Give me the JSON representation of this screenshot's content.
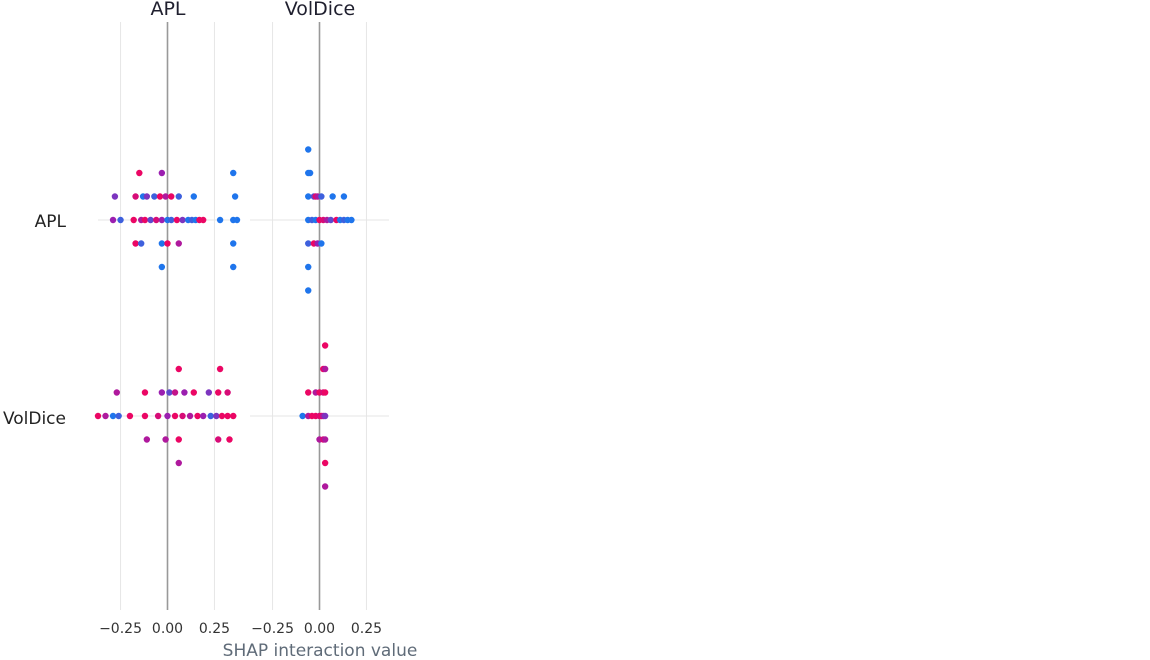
{
  "chart_data": {
    "type": "scatter",
    "subtype": "shap-interaction-summary",
    "xlabel": "SHAP interaction value",
    "features": [
      "APL",
      "VolDice"
    ],
    "xlim": [
      -0.37,
      0.37
    ],
    "xticks": [
      "−0.25",
      "0.00",
      "0.25"
    ],
    "xtick_values": [
      -0.25,
      0.0,
      0.25
    ],
    "colors": {
      "low": "#008bfb",
      "mid": "#9b1fb0",
      "high": "#ff0051",
      "zero_line": "#999999",
      "grid": "#e6e6e6"
    },
    "panels": [
      {
        "row": "APL",
        "col": "APL",
        "points": [
          {
            "x": -0.15,
            "lane": -2,
            "c": 0.9
          },
          {
            "x": -0.03,
            "lane": -2,
            "c": 0.5
          },
          {
            "x": 0.35,
            "lane": -2,
            "c": 0.1
          },
          {
            "x": -0.28,
            "lane": -1,
            "c": 0.4
          },
          {
            "x": -0.17,
            "lane": -1,
            "c": 0.8
          },
          {
            "x": -0.13,
            "lane": -1,
            "c": 0.1
          },
          {
            "x": -0.11,
            "lane": -1,
            "c": 0.4
          },
          {
            "x": -0.07,
            "lane": -1,
            "c": 0.2
          },
          {
            "x": -0.04,
            "lane": -1,
            "c": 0.9
          },
          {
            "x": -0.01,
            "lane": -1,
            "c": 0.6
          },
          {
            "x": 0.02,
            "lane": -1,
            "c": 0.9
          },
          {
            "x": 0.06,
            "lane": -1,
            "c": 0.2
          },
          {
            "x": 0.14,
            "lane": -1,
            "c": 0.1
          },
          {
            "x": 0.36,
            "lane": -1,
            "c": 0.1
          },
          {
            "x": -0.29,
            "lane": 0,
            "c": 0.5
          },
          {
            "x": -0.25,
            "lane": 0,
            "c": 0.2
          },
          {
            "x": -0.18,
            "lane": 0,
            "c": 0.9
          },
          {
            "x": -0.14,
            "lane": 0,
            "c": 0.6
          },
          {
            "x": -0.12,
            "lane": 0,
            "c": 0.9
          },
          {
            "x": -0.09,
            "lane": 0,
            "c": 0.3
          },
          {
            "x": -0.06,
            "lane": 0,
            "c": 0.8
          },
          {
            "x": -0.03,
            "lane": 0,
            "c": 0.5
          },
          {
            "x": 0.0,
            "lane": 0,
            "c": 0.1
          },
          {
            "x": 0.02,
            "lane": 0,
            "c": 0.2
          },
          {
            "x": 0.05,
            "lane": 0,
            "c": 0.9
          },
          {
            "x": 0.08,
            "lane": 0,
            "c": 0.4
          },
          {
            "x": 0.11,
            "lane": 0,
            "c": 0.1
          },
          {
            "x": 0.13,
            "lane": 0,
            "c": 0.2
          },
          {
            "x": 0.15,
            "lane": 0,
            "c": 0.1
          },
          {
            "x": 0.17,
            "lane": 0,
            "c": 0.9
          },
          {
            "x": 0.19,
            "lane": 0,
            "c": 0.9
          },
          {
            "x": 0.28,
            "lane": 0,
            "c": 0.1
          },
          {
            "x": 0.35,
            "lane": 0,
            "c": 0.1
          },
          {
            "x": 0.37,
            "lane": 0,
            "c": 0.1
          },
          {
            "x": -0.17,
            "lane": 1,
            "c": 0.9
          },
          {
            "x": -0.14,
            "lane": 1,
            "c": 0.2
          },
          {
            "x": -0.03,
            "lane": 1,
            "c": 0.1
          },
          {
            "x": 0.0,
            "lane": 1,
            "c": 0.9
          },
          {
            "x": 0.06,
            "lane": 1,
            "c": 0.6
          },
          {
            "x": 0.35,
            "lane": 1,
            "c": 0.1
          },
          {
            "x": -0.03,
            "lane": 2,
            "c": 0.1
          },
          {
            "x": 0.35,
            "lane": 2,
            "c": 0.1
          }
        ]
      },
      {
        "row": "APL",
        "col": "VolDice",
        "points": [
          {
            "x": -0.06,
            "lane": -3,
            "c": 0.1
          },
          {
            "x": -0.06,
            "lane": -2,
            "c": 0.1
          },
          {
            "x": -0.05,
            "lane": -2,
            "c": 0.1
          },
          {
            "x": -0.06,
            "lane": -1,
            "c": 0.1
          },
          {
            "x": -0.03,
            "lane": -1,
            "c": 0.3
          },
          {
            "x": -0.02,
            "lane": -1,
            "c": 0.9
          },
          {
            "x": -0.01,
            "lane": -1,
            "c": 0.6
          },
          {
            "x": 0.01,
            "lane": -1,
            "c": 0.2
          },
          {
            "x": 0.07,
            "lane": -1,
            "c": 0.1
          },
          {
            "x": 0.13,
            "lane": -1,
            "c": 0.1
          },
          {
            "x": -0.06,
            "lane": 0,
            "c": 0.1
          },
          {
            "x": -0.04,
            "lane": 0,
            "c": 0.2
          },
          {
            "x": -0.02,
            "lane": 0,
            "c": 0.1
          },
          {
            "x": 0.0,
            "lane": 0,
            "c": 0.9
          },
          {
            "x": 0.02,
            "lane": 0,
            "c": 0.8
          },
          {
            "x": 0.04,
            "lane": 0,
            "c": 0.6
          },
          {
            "x": 0.06,
            "lane": 0,
            "c": 0.3
          },
          {
            "x": 0.09,
            "lane": 0,
            "c": 0.9
          },
          {
            "x": 0.11,
            "lane": 0,
            "c": 0.1
          },
          {
            "x": 0.13,
            "lane": 0,
            "c": 0.2
          },
          {
            "x": 0.15,
            "lane": 0,
            "c": 0.1
          },
          {
            "x": 0.17,
            "lane": 0,
            "c": 0.1
          },
          {
            "x": -0.06,
            "lane": 1,
            "c": 0.2
          },
          {
            "x": -0.03,
            "lane": 1,
            "c": 0.9
          },
          {
            "x": -0.01,
            "lane": 1,
            "c": 0.5
          },
          {
            "x": 0.01,
            "lane": 1,
            "c": 0.1
          },
          {
            "x": -0.06,
            "lane": 2,
            "c": 0.1
          },
          {
            "x": -0.06,
            "lane": 3,
            "c": 0.1
          }
        ]
      },
      {
        "row": "VolDice",
        "col": "APL",
        "points": [
          {
            "x": 0.06,
            "lane": -2,
            "c": 0.9
          },
          {
            "x": 0.28,
            "lane": -2,
            "c": 0.9
          },
          {
            "x": -0.27,
            "lane": -1,
            "c": 0.6
          },
          {
            "x": -0.12,
            "lane": -1,
            "c": 0.9
          },
          {
            "x": -0.03,
            "lane": -1,
            "c": 0.5
          },
          {
            "x": 0.01,
            "lane": -1,
            "c": 0.3
          },
          {
            "x": 0.04,
            "lane": -1,
            "c": 0.7
          },
          {
            "x": 0.09,
            "lane": -1,
            "c": 0.5
          },
          {
            "x": 0.14,
            "lane": -1,
            "c": 0.9
          },
          {
            "x": 0.22,
            "lane": -1,
            "c": 0.4
          },
          {
            "x": 0.27,
            "lane": -1,
            "c": 0.9
          },
          {
            "x": 0.32,
            "lane": -1,
            "c": 0.8
          },
          {
            "x": -0.37,
            "lane": 0,
            "c": 0.9
          },
          {
            "x": -0.33,
            "lane": 0,
            "c": 0.6
          },
          {
            "x": -0.29,
            "lane": 0,
            "c": 0.1
          },
          {
            "x": -0.26,
            "lane": 0,
            "c": 0.2
          },
          {
            "x": -0.2,
            "lane": 0,
            "c": 0.9
          },
          {
            "x": -0.12,
            "lane": 0,
            "c": 0.9
          },
          {
            "x": -0.05,
            "lane": 0,
            "c": 0.8
          },
          {
            "x": 0.0,
            "lane": 0,
            "c": 0.5
          },
          {
            "x": 0.04,
            "lane": 0,
            "c": 0.9
          },
          {
            "x": 0.08,
            "lane": 0,
            "c": 0.8
          },
          {
            "x": 0.12,
            "lane": 0,
            "c": 0.6
          },
          {
            "x": 0.16,
            "lane": 0,
            "c": 0.9
          },
          {
            "x": 0.19,
            "lane": 0,
            "c": 0.5
          },
          {
            "x": 0.23,
            "lane": 0,
            "c": 0.2
          },
          {
            "x": 0.26,
            "lane": 0,
            "c": 0.4
          },
          {
            "x": 0.29,
            "lane": 0,
            "c": 0.9
          },
          {
            "x": 0.32,
            "lane": 0,
            "c": 0.9
          },
          {
            "x": 0.35,
            "lane": 0,
            "c": 0.9
          },
          {
            "x": -0.11,
            "lane": 1,
            "c": 0.6
          },
          {
            "x": -0.01,
            "lane": 1,
            "c": 0.6
          },
          {
            "x": 0.06,
            "lane": 1,
            "c": 0.9
          },
          {
            "x": 0.27,
            "lane": 1,
            "c": 0.8
          },
          {
            "x": 0.33,
            "lane": 1,
            "c": 0.9
          },
          {
            "x": 0.06,
            "lane": 2,
            "c": 0.6
          }
        ]
      },
      {
        "row": "VolDice",
        "col": "VolDice",
        "points": [
          {
            "x": 0.03,
            "lane": -3,
            "c": 0.9
          },
          {
            "x": 0.02,
            "lane": -2,
            "c": 0.9
          },
          {
            "x": 0.03,
            "lane": -2,
            "c": 0.6
          },
          {
            "x": -0.06,
            "lane": -1,
            "c": 0.9
          },
          {
            "x": -0.02,
            "lane": -1,
            "c": 0.6
          },
          {
            "x": 0.0,
            "lane": -1,
            "c": 0.9
          },
          {
            "x": 0.02,
            "lane": -1,
            "c": 0.8
          },
          {
            "x": 0.03,
            "lane": -1,
            "c": 0.9
          },
          {
            "x": -0.09,
            "lane": 0,
            "c": 0.1
          },
          {
            "x": -0.06,
            "lane": 0,
            "c": 0.6
          },
          {
            "x": -0.04,
            "lane": 0,
            "c": 0.9
          },
          {
            "x": -0.02,
            "lane": 0,
            "c": 0.9
          },
          {
            "x": 0.0,
            "lane": 0,
            "c": 0.8
          },
          {
            "x": 0.01,
            "lane": 0,
            "c": 0.9
          },
          {
            "x": 0.02,
            "lane": 0,
            "c": 0.6
          },
          {
            "x": 0.03,
            "lane": 0,
            "c": 0.4
          },
          {
            "x": 0.0,
            "lane": 1,
            "c": 0.6
          },
          {
            "x": 0.02,
            "lane": 1,
            "c": 0.8
          },
          {
            "x": 0.03,
            "lane": 1,
            "c": 0.6
          },
          {
            "x": 0.03,
            "lane": 2,
            "c": 0.9
          },
          {
            "x": 0.03,
            "lane": 3,
            "c": 0.6
          }
        ]
      }
    ]
  }
}
